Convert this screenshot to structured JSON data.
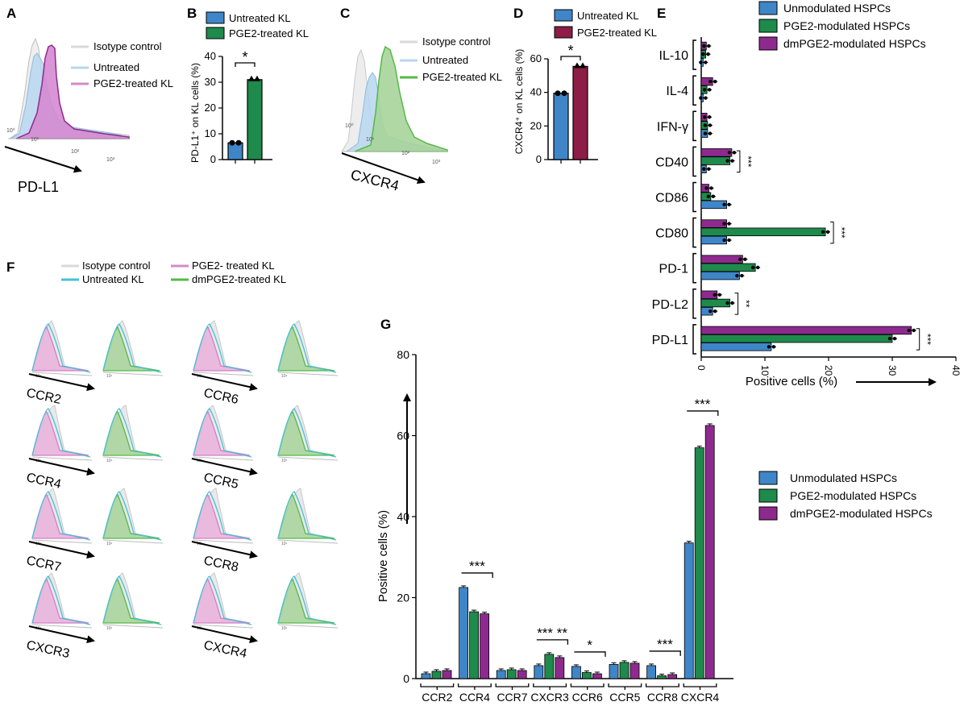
{
  "colors": {
    "blue": "#3f86c8",
    "green": "#1e8a4c",
    "purple": "#8e2a8e",
    "maroon": "#8d1d47",
    "iso": "#c8c8c8",
    "untreated_light": "#b7d6ee",
    "cyan": "#46c1d6",
    "pink": "#d07fc6",
    "pink_fill": "#eab1dc",
    "green_fill": "#a7d49a",
    "light_green": "#55b948"
  },
  "panel_labels": {
    "A": "A",
    "B": "B",
    "C": "C",
    "D": "D",
    "E": "E",
    "F": "F",
    "G": "G"
  },
  "panel_a": {
    "legend": [
      "Isotype control",
      "Untreated",
      "PGE2-treated KL"
    ],
    "axis_label": "PD-L1",
    "ticks": [
      "10⁰",
      "10¹",
      "10²",
      "10³"
    ]
  },
  "panel_c": {
    "legend": [
      "Isotype control",
      "Untreated",
      "PGE2-treated KL"
    ],
    "axis_label": "CXCR4",
    "ticks": [
      "10⁰",
      "10¹",
      "10²",
      "10³"
    ]
  },
  "panel_f": {
    "legend": [
      "Isotype control",
      "Untreated KL",
      "PGE2- treated KL",
      "dmPGE2-treated KL"
    ],
    "receptors": [
      "CCR2",
      "CCR6",
      "CCR4",
      "CCR5",
      "CCR7",
      "CCR8",
      "CXCR3",
      "CXCR4"
    ],
    "tick": "10¹"
  },
  "chart_data": [
    {
      "panel": "B",
      "type": "bar",
      "legend": [
        "Untreated KL",
        "PGE2-treated KL"
      ],
      "categories": [
        "Untreated KL",
        "PGE2-treated KL"
      ],
      "values": [
        6.5,
        31
      ],
      "ylabel": "PD-L1⁺ on KL cells (%)",
      "ylim": [
        0,
        40
      ],
      "yticks": [
        "0",
        "10",
        "20",
        "30",
        "40"
      ],
      "significance": "*"
    },
    {
      "panel": "D",
      "type": "bar",
      "legend": [
        "Untreated KL",
        "PGE2-treated KL"
      ],
      "categories": [
        "Untreated KL",
        "PGE2-treated KL"
      ],
      "values": [
        39.5,
        55.5
      ],
      "ylabel": "CXCR4⁺ on KL cells (%)",
      "ylim": [
        0,
        60
      ],
      "yticks": [
        "0",
        "20",
        "40",
        "60"
      ],
      "significance": "*"
    },
    {
      "panel": "E",
      "type": "bar",
      "orientation": "horizontal",
      "series_names": [
        "Unmodulated HSPCs",
        "PGE2-modulated HSPCs",
        "dmPGE2-modulated HSPCs"
      ],
      "categories": [
        "IL-10",
        "IL-4",
        "IFN-γ",
        "CD40",
        "CD86",
        "CD80",
        "PD-1",
        "PD-L2",
        "PD-L1"
      ],
      "series": [
        {
          "name": "Unmodulated HSPCs",
          "values": [
            0.3,
            0.3,
            1.0,
            0.8,
            4.0,
            4.0,
            6.0,
            1.8,
            11.0
          ]
        },
        {
          "name": "PGE2-modulated HSPCs",
          "values": [
            0.7,
            0.9,
            1.0,
            4.5,
            1.5,
            19.5,
            8.5,
            4.5,
            30.0
          ]
        },
        {
          "name": "dmPGE2-modulated HSPCs",
          "values": [
            0.8,
            1.8,
            0.9,
            4.8,
            1.2,
            4.0,
            6.5,
            2.5,
            33.0
          ]
        }
      ],
      "significance": [
        "",
        "",
        "",
        "***",
        "",
        "***",
        "",
        "**",
        "***"
      ],
      "xlabel": "Positive cells (%)",
      "xlim": [
        0,
        40
      ],
      "xticks": [
        "0",
        "10",
        "20",
        "30",
        "40"
      ]
    },
    {
      "panel": "G",
      "type": "bar",
      "series_names": [
        "Unmodulated HSPCs",
        "PGE2-modulated HSPCs",
        "dmPGE2-modulated HSPCs"
      ],
      "categories": [
        "CCR2",
        "CCR4",
        "CCR7",
        "CXCR3",
        "CCR6",
        "CCR5",
        "CCR8",
        "CXCR4"
      ],
      "series": [
        {
          "name": "Unmodulated HSPCs",
          "values": [
            1.2,
            22.5,
            2.0,
            3.2,
            3.0,
            3.5,
            3.2,
            33.5
          ]
        },
        {
          "name": "PGE2-modulated HSPCs",
          "values": [
            1.8,
            16.5,
            2.2,
            6.0,
            1.5,
            4.0,
            0.7,
            57.0
          ]
        },
        {
          "name": "dmPGE2-modulated HSPCs",
          "values": [
            2.0,
            16.0,
            2.0,
            5.2,
            1.2,
            3.8,
            1.0,
            62.5
          ]
        }
      ],
      "significance": [
        "",
        "***",
        "",
        "*** **",
        "*",
        "",
        "***",
        "***"
      ],
      "ylabel": "Positive cells (%)",
      "ylim": [
        0,
        80
      ],
      "yticks": [
        "0",
        "20",
        "40",
        "60",
        "80"
      ]
    }
  ]
}
